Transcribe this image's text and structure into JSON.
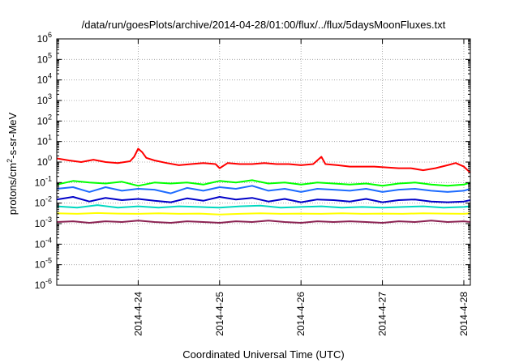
{
  "chart_data": {
    "type": "line",
    "title": "/data/run/goesPlots/archive/2014-04-28/01:00/flux/../flux/5daysMoonFluxes.txt",
    "xlabel": "Coordinated Universal Time (UTC)",
    "ylabel": "protons/cm2-s-sr-MeV",
    "ylabel_parts": {
      "pre": "protons/cm",
      "sup": "2",
      "post": "-s-sr-MeV"
    },
    "yscale": "log",
    "ylim": [
      1e-06,
      1000000.0
    ],
    "xlim": [
      0,
      5.08
    ],
    "y_ticks": [
      {
        "value": 1e-06,
        "base": "10",
        "exp": "-6"
      },
      {
        "value": 1e-05,
        "base": "10",
        "exp": "-5"
      },
      {
        "value": 0.0001,
        "base": "10",
        "exp": "-4"
      },
      {
        "value": 0.001,
        "base": "10",
        "exp": "-3"
      },
      {
        "value": 0.01,
        "base": "10",
        "exp": "-2"
      },
      {
        "value": 0.1,
        "base": "10",
        "exp": "-1"
      },
      {
        "value": 1,
        "base": "10",
        "exp": "0"
      },
      {
        "value": 10,
        "base": "10",
        "exp": "1"
      },
      {
        "value": 100,
        "base": "10",
        "exp": "2"
      },
      {
        "value": 1000,
        "base": "10",
        "exp": "3"
      },
      {
        "value": 10000,
        "base": "10",
        "exp": "4"
      },
      {
        "value": 100000,
        "base": "10",
        "exp": "5"
      },
      {
        "value": 1000000,
        "base": "10",
        "exp": "6"
      }
    ],
    "x_ticks": [
      {
        "value": 1,
        "label": "2014-4-24"
      },
      {
        "value": 2,
        "label": "2014-4-25"
      },
      {
        "value": 3,
        "label": "2014-4-26"
      },
      {
        "value": 4,
        "label": "2014-4-27"
      },
      {
        "value": 5,
        "label": "2014-4-28"
      }
    ],
    "grid": true,
    "legend": "none",
    "series": [
      {
        "color": "#ff0000",
        "x": [
          0.0,
          0.15,
          0.3,
          0.45,
          0.6,
          0.75,
          0.9,
          0.95,
          1.0,
          1.05,
          1.1,
          1.2,
          1.35,
          1.5,
          1.65,
          1.8,
          1.95,
          2.0,
          2.1,
          2.25,
          2.4,
          2.55,
          2.7,
          2.85,
          3.0,
          3.15,
          3.25,
          3.3,
          3.45,
          3.6,
          3.75,
          3.9,
          4.05,
          4.2,
          4.35,
          4.5,
          4.65,
          4.8,
          4.9,
          5.0,
          5.08
        ],
        "values": [
          1.5,
          1.2,
          1.0,
          1.3,
          1.0,
          0.9,
          1.1,
          1.8,
          4.5,
          3.0,
          1.6,
          1.2,
          0.9,
          0.7,
          0.8,
          0.9,
          0.8,
          0.5,
          0.9,
          0.8,
          0.8,
          0.9,
          0.8,
          0.8,
          0.7,
          0.8,
          1.8,
          0.8,
          0.7,
          0.6,
          0.6,
          0.6,
          0.55,
          0.5,
          0.5,
          0.4,
          0.5,
          0.7,
          0.9,
          0.6,
          0.3
        ]
      },
      {
        "color": "#00ff00",
        "x": [
          0.0,
          0.2,
          0.4,
          0.6,
          0.8,
          1.0,
          1.2,
          1.4,
          1.6,
          1.8,
          2.0,
          2.2,
          2.4,
          2.6,
          2.8,
          3.0,
          3.2,
          3.4,
          3.6,
          3.8,
          4.0,
          4.2,
          4.4,
          4.6,
          4.8,
          5.0,
          5.08
        ],
        "values": [
          0.08,
          0.12,
          0.1,
          0.09,
          0.11,
          0.07,
          0.1,
          0.09,
          0.1,
          0.08,
          0.12,
          0.1,
          0.13,
          0.09,
          0.1,
          0.08,
          0.1,
          0.09,
          0.08,
          0.09,
          0.07,
          0.09,
          0.1,
          0.08,
          0.07,
          0.08,
          0.1
        ]
      },
      {
        "color": "#1e6cff",
        "x": [
          0.0,
          0.2,
          0.4,
          0.6,
          0.8,
          1.0,
          1.2,
          1.4,
          1.6,
          1.8,
          2.0,
          2.2,
          2.4,
          2.6,
          2.8,
          3.0,
          3.2,
          3.4,
          3.6,
          3.8,
          4.0,
          4.2,
          4.4,
          4.6,
          4.8,
          5.0,
          5.08
        ],
        "values": [
          0.05,
          0.06,
          0.035,
          0.06,
          0.04,
          0.05,
          0.045,
          0.03,
          0.055,
          0.04,
          0.06,
          0.05,
          0.07,
          0.04,
          0.05,
          0.035,
          0.05,
          0.045,
          0.04,
          0.05,
          0.035,
          0.045,
          0.05,
          0.04,
          0.035,
          0.04,
          0.05
        ]
      },
      {
        "color": "#0000c8",
        "x": [
          0.0,
          0.2,
          0.4,
          0.6,
          0.8,
          1.0,
          1.2,
          1.4,
          1.6,
          1.8,
          2.0,
          2.2,
          2.4,
          2.6,
          2.8,
          3.0,
          3.2,
          3.4,
          3.6,
          3.8,
          4.0,
          4.2,
          4.4,
          4.6,
          4.8,
          5.0,
          5.08
        ],
        "values": [
          0.015,
          0.02,
          0.012,
          0.018,
          0.014,
          0.016,
          0.013,
          0.011,
          0.017,
          0.013,
          0.02,
          0.015,
          0.018,
          0.012,
          0.016,
          0.011,
          0.015,
          0.014,
          0.012,
          0.016,
          0.011,
          0.014,
          0.015,
          0.012,
          0.011,
          0.012,
          0.014
        ]
      },
      {
        "color": "#00d8c0",
        "x": [
          0.0,
          0.25,
          0.5,
          0.75,
          1.0,
          1.25,
          1.5,
          1.75,
          2.0,
          2.25,
          2.5,
          2.75,
          3.0,
          3.25,
          3.5,
          3.75,
          4.0,
          4.25,
          4.5,
          4.75,
          5.0,
          5.08
        ],
        "values": [
          0.007,
          0.006,
          0.008,
          0.006,
          0.007,
          0.006,
          0.007,
          0.0065,
          0.006,
          0.007,
          0.0075,
          0.006,
          0.0065,
          0.007,
          0.006,
          0.0065,
          0.006,
          0.0065,
          0.007,
          0.006,
          0.0065,
          0.007
        ]
      },
      {
        "color": "#ffff00",
        "x": [
          0.0,
          0.25,
          0.5,
          0.75,
          1.0,
          1.25,
          1.5,
          1.75,
          2.0,
          2.25,
          2.5,
          2.75,
          3.0,
          3.25,
          3.5,
          3.75,
          4.0,
          4.25,
          4.5,
          4.75,
          5.0,
          5.08
        ],
        "values": [
          0.0032,
          0.003,
          0.0033,
          0.0031,
          0.003,
          0.0032,
          0.003,
          0.0031,
          0.0028,
          0.003,
          0.0032,
          0.003,
          0.0031,
          0.003,
          0.0032,
          0.003,
          0.0031,
          0.003,
          0.0032,
          0.0031,
          0.003,
          0.0032
        ]
      },
      {
        "color": "#8b2252",
        "x": [
          0.0,
          0.2,
          0.4,
          0.6,
          0.8,
          1.0,
          1.2,
          1.4,
          1.6,
          1.8,
          2.0,
          2.2,
          2.4,
          2.6,
          2.8,
          3.0,
          3.2,
          3.4,
          3.6,
          3.8,
          4.0,
          4.2,
          4.4,
          4.6,
          4.8,
          5.0,
          5.08
        ],
        "values": [
          0.0012,
          0.0013,
          0.0011,
          0.0013,
          0.0012,
          0.0014,
          0.0012,
          0.0011,
          0.0013,
          0.0012,
          0.0011,
          0.0013,
          0.0012,
          0.0014,
          0.0012,
          0.0011,
          0.0013,
          0.0012,
          0.0013,
          0.0012,
          0.0011,
          0.0013,
          0.0012,
          0.0014,
          0.0012,
          0.0013,
          0.0012
        ]
      }
    ]
  }
}
